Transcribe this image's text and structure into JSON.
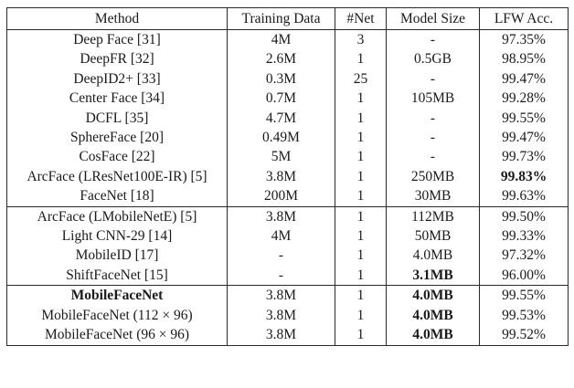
{
  "table": {
    "headers": [
      "Method",
      "Training Data",
      "#Net",
      "Model Size",
      "LFW Acc."
    ],
    "groups": [
      {
        "rows": [
          {
            "method": "Deep Face [31]",
            "training_data": "4M",
            "net": "3",
            "model_size": "-",
            "lfw_acc": "97.35%"
          },
          {
            "method": "DeepFR [32]",
            "training_data": "2.6M",
            "net": "1",
            "model_size": "0.5GB",
            "lfw_acc": "98.95%"
          },
          {
            "method": "DeepID2+ [33]",
            "training_data": "0.3M",
            "net": "25",
            "model_size": "-",
            "lfw_acc": "99.47%"
          },
          {
            "method": "Center Face [34]",
            "training_data": "0.7M",
            "net": "1",
            "model_size": "105MB",
            "lfw_acc": "99.28%"
          },
          {
            "method": "DCFL [35]",
            "training_data": "4.7M",
            "net": "1",
            "model_size": "-",
            "lfw_acc": "99.55%"
          },
          {
            "method": "SphereFace [20]",
            "training_data": "0.49M",
            "net": "1",
            "model_size": "-",
            "lfw_acc": "99.47%"
          },
          {
            "method": "CosFace [22]",
            "training_data": "5M",
            "net": "1",
            "model_size": "-",
            "lfw_acc": "99.73%"
          },
          {
            "method": "ArcFace (LResNet100E-IR) [5]",
            "training_data": "3.8M",
            "net": "1",
            "model_size": "250MB",
            "lfw_acc": "99.83%",
            "bold": [
              "lfw_acc"
            ]
          },
          {
            "method": "FaceNet [18]",
            "training_data": "200M",
            "net": "1",
            "model_size": "30MB",
            "lfw_acc": "99.63%"
          }
        ]
      },
      {
        "rows": [
          {
            "method": "ArcFace (LMobileNetE) [5]",
            "training_data": "3.8M",
            "net": "1",
            "model_size": "112MB",
            "lfw_acc": "99.50%"
          },
          {
            "method": "Light CNN-29 [14]",
            "training_data": "4M",
            "net": "1",
            "model_size": "50MB",
            "lfw_acc": "99.33%"
          },
          {
            "method": "MobileID [17]",
            "training_data": "-",
            "net": "1",
            "model_size": "4.0MB",
            "lfw_acc": "97.32%"
          },
          {
            "method": "ShiftFaceNet [15]",
            "training_data": "-",
            "net": "1",
            "model_size": "3.1MB",
            "lfw_acc": "96.00%",
            "bold": [
              "model_size"
            ]
          }
        ]
      },
      {
        "rows": [
          {
            "method": "MobileFaceNet",
            "training_data": "3.8M",
            "net": "1",
            "model_size": "4.0MB",
            "lfw_acc": "99.55%",
            "bold": [
              "method",
              "model_size"
            ]
          },
          {
            "method": "MobileFaceNet (112 × 96)",
            "training_data": "3.8M",
            "net": "1",
            "model_size": "4.0MB",
            "lfw_acc": "99.53%",
            "bold": [
              "model_size"
            ]
          },
          {
            "method": "MobileFaceNet (96 × 96)",
            "training_data": "3.8M",
            "net": "1",
            "model_size": "4.0MB",
            "lfw_acc": "99.52%",
            "bold": [
              "model_size"
            ]
          }
        ]
      }
    ]
  }
}
